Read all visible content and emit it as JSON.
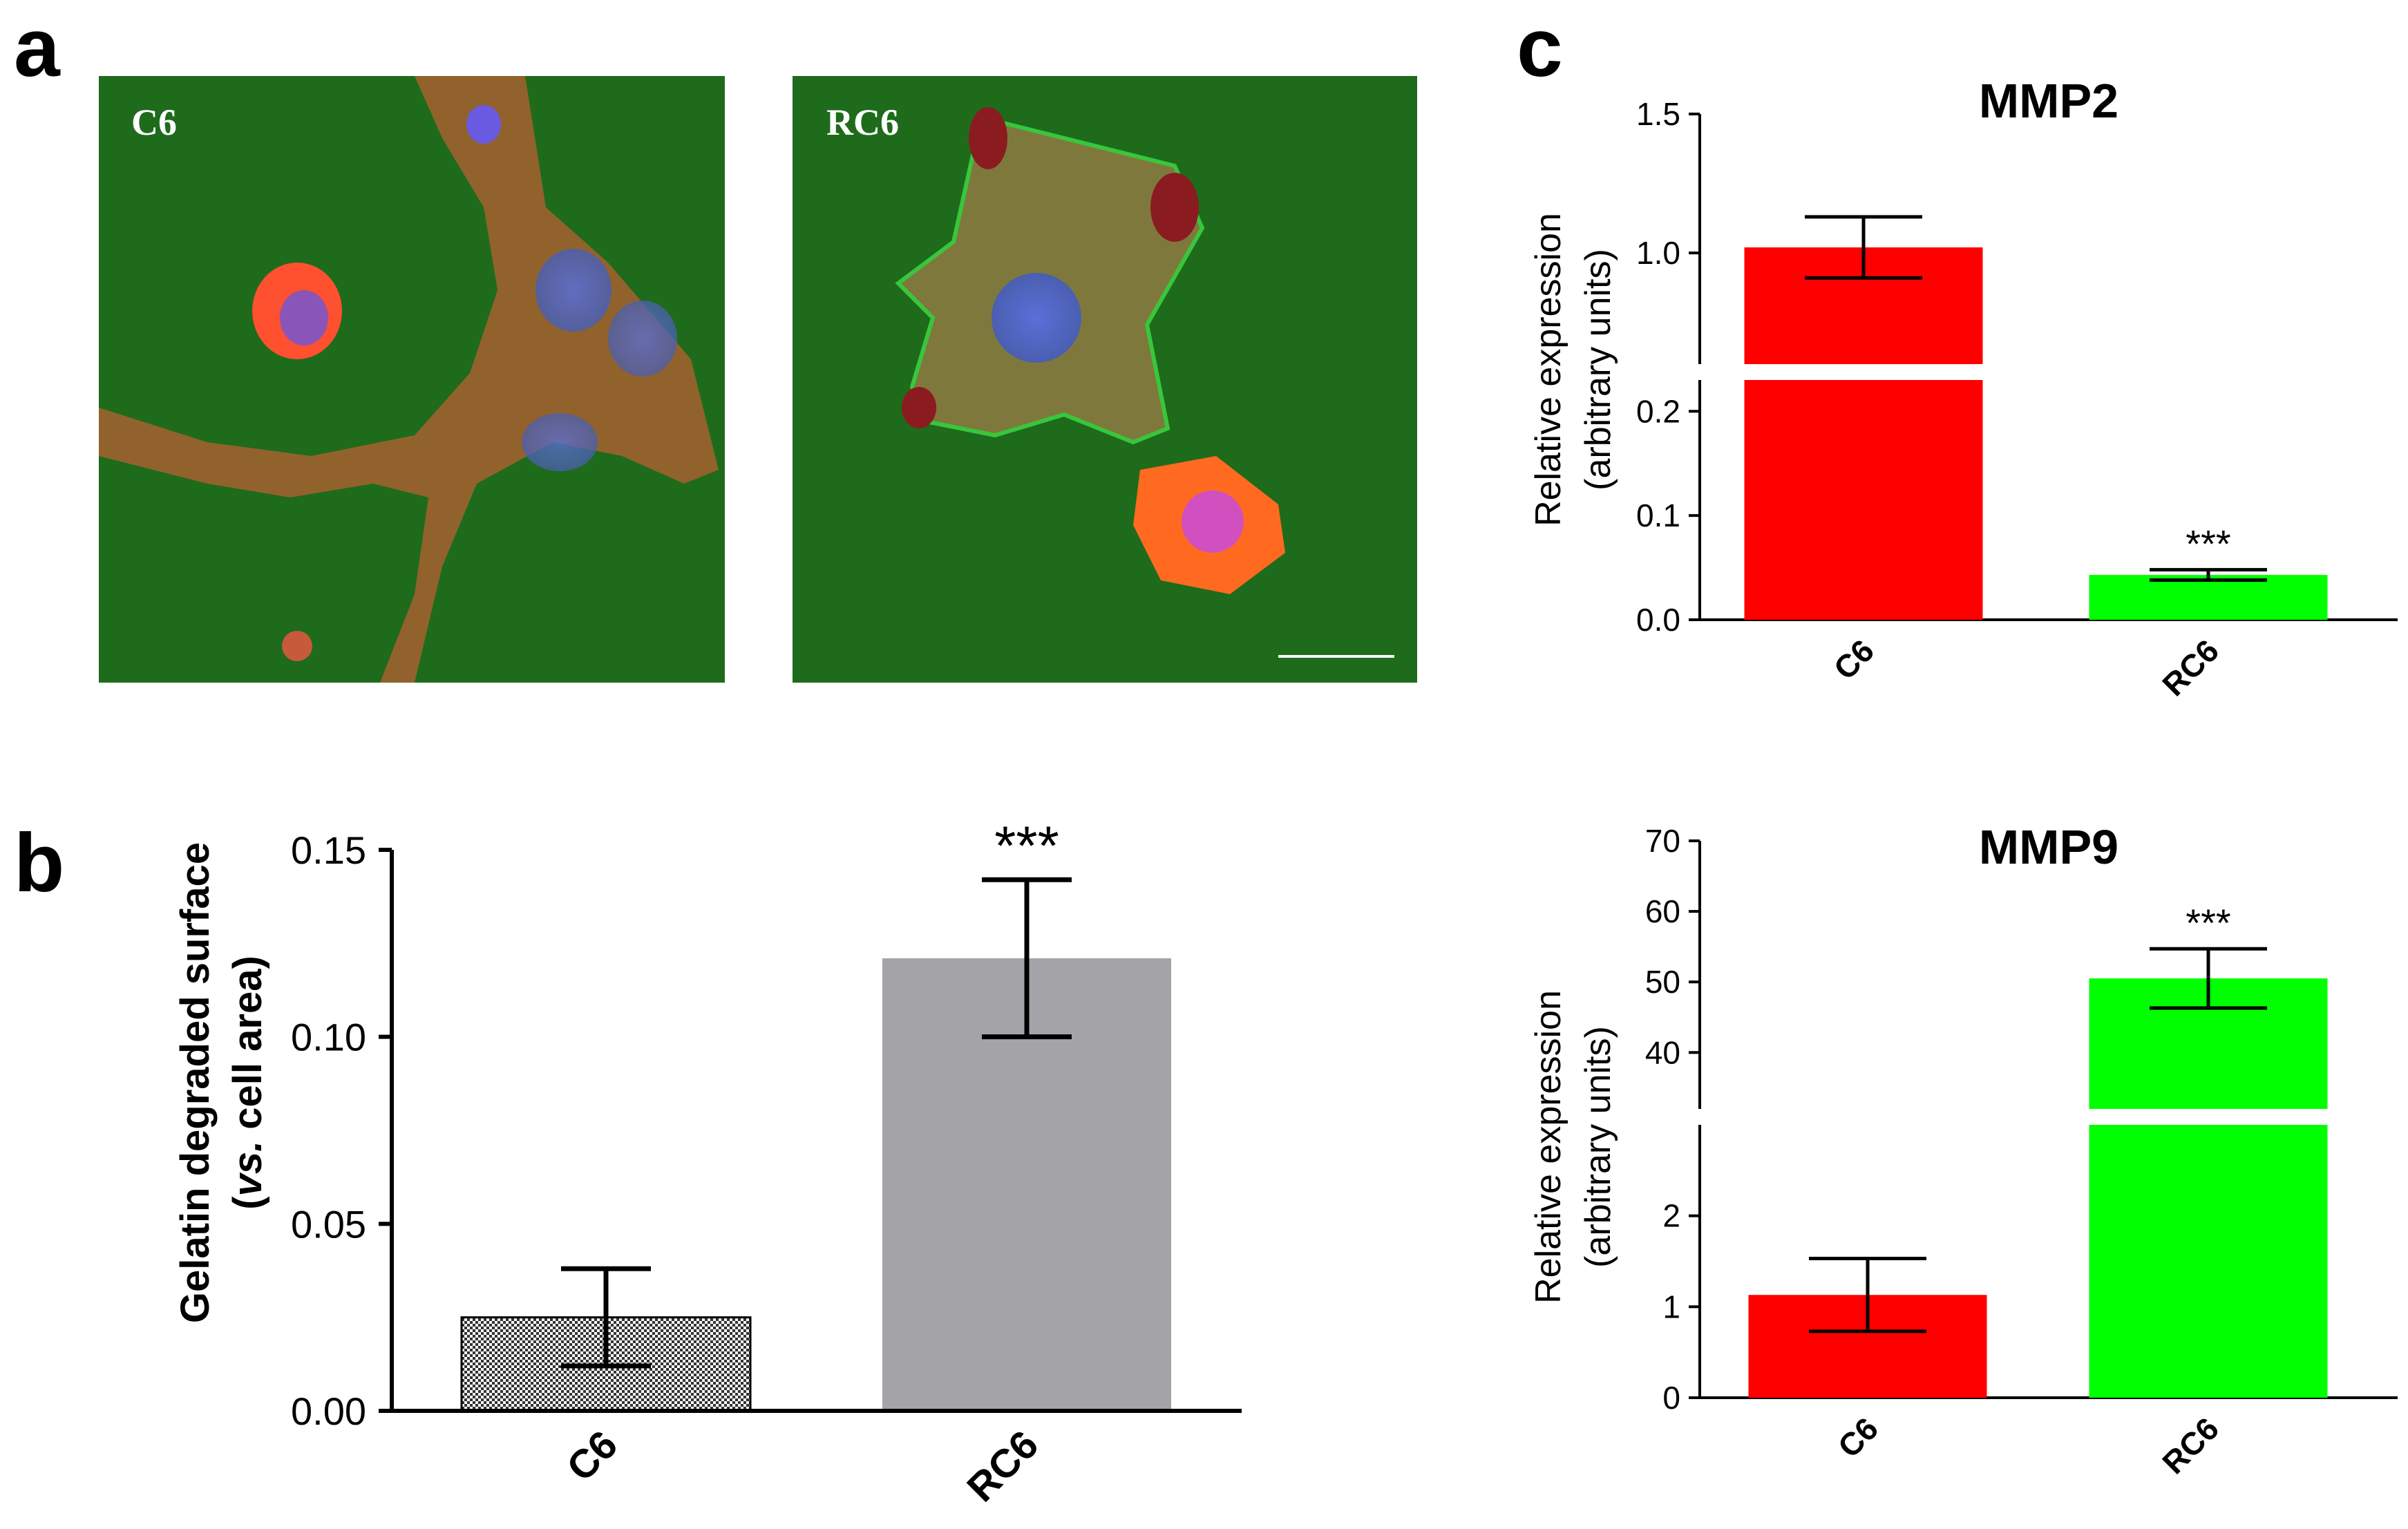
{
  "panel_labels": {
    "a": "a",
    "b": "b",
    "c": "c"
  },
  "micrographs": [
    {
      "label": "C6"
    },
    {
      "label": "RC6"
    }
  ],
  "colors": {
    "c6": "#ff0000",
    "rc6": "#00ff00",
    "gelatin_rc6": "#a4a3a8",
    "background": "#1e6b1c"
  },
  "chart_data": [
    {
      "id": "b",
      "type": "bar",
      "title": "",
      "ylabel_line1": "Gelatin degraded surface",
      "ylabel_line2_italic": "vs.",
      "ylabel_line2_rest": " cell area)",
      "ylabel_line2_open": "(",
      "categories": [
        "C6",
        "RC6"
      ],
      "values": [
        0.025,
        0.121
      ],
      "errors": [
        0.013,
        0.021
      ],
      "significance": [
        "",
        "***"
      ],
      "ylim": [
        0,
        0.15
      ],
      "ticks": [
        "0.00",
        "0.05",
        "0.10",
        "0.15"
      ]
    },
    {
      "id": "c_top",
      "type": "bar",
      "title": "MMP2",
      "ylabel_line1": "Relative expression",
      "ylabel_line2": "(arbitrary units)",
      "categories": [
        "C6",
        "RC6"
      ],
      "values": [
        1.02,
        0.043
      ],
      "errors": [
        0.11,
        0.005
      ],
      "significance": [
        "",
        "***"
      ],
      "broken_axis": {
        "lower_range": [
          0,
          0.23
        ],
        "upper_range": [
          0.6,
          1.5
        ]
      },
      "ticks": [
        "0.0",
        "0.1",
        "0.2",
        "1.0",
        "1.5"
      ]
    },
    {
      "id": "c_bottom",
      "type": "bar",
      "title": "MMP9",
      "ylabel_line1": "Relative expression",
      "ylabel_line2": "(arbitrary units)",
      "categories": [
        "C6",
        "RC6"
      ],
      "values": [
        1.13,
        50.5
      ],
      "errors": [
        0.4,
        4.2
      ],
      "significance": [
        "",
        "***"
      ],
      "broken_axis": {
        "lower_range": [
          0,
          3
        ],
        "upper_range": [
          32,
          70
        ]
      },
      "ticks": [
        "0",
        "1",
        "2",
        "40",
        "50",
        "60",
        "70"
      ]
    }
  ]
}
